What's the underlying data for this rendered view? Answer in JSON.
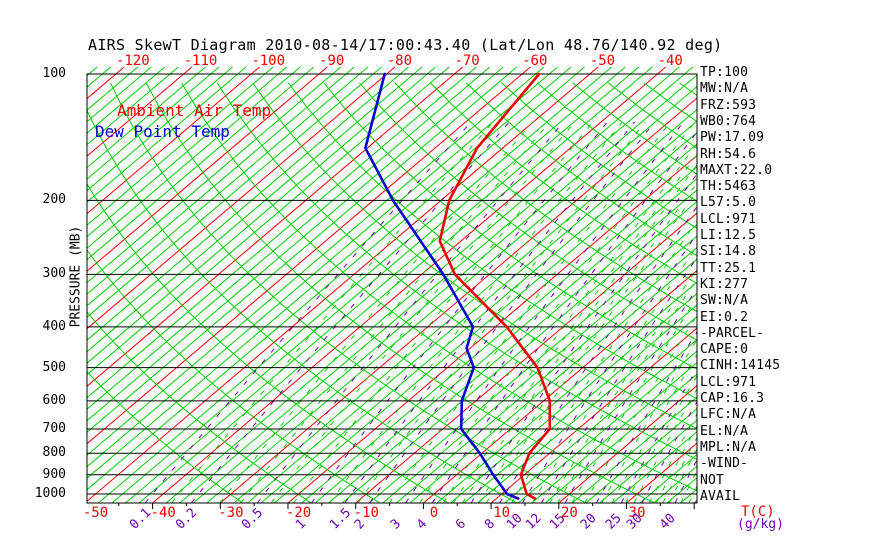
{
  "title": "AIRS SkewT Diagram 2010-08-14/17:00:43.40 (Lat/Lon 48.76/140.92 deg)",
  "legend": {
    "temp": "Ambient Air Temp",
    "dew": "Dew Point Temp"
  },
  "colors": {
    "temp_curve": "#ee0000",
    "dew_curve": "#0000cc",
    "isotherm_minor": "#00cc00",
    "isotherm_major": "#ee0000",
    "dry_adiabat": "#00cc00",
    "mixing_minor": "#00cc00",
    "mixing_major": "#7000b0",
    "isobar": "#000000",
    "title_text": "#000000"
  },
  "axes": {
    "pressure_label": "PRESSURE (MB)",
    "pressure_ticks": [
      100,
      200,
      300,
      400,
      500,
      600,
      700,
      800,
      900,
      1000
    ],
    "temp_unit_label": "T(C)",
    "mixing_unit_label": "(g/kg)",
    "top_isotherm_labels": [
      -120,
      -110,
      -100,
      -90,
      -80,
      -70,
      -60,
      -50,
      -40
    ],
    "bottom_isotherm_labels": [
      -50,
      -40,
      -30,
      -20,
      -10,
      0,
      10,
      20,
      30
    ],
    "mixing_ratio_labels": [
      0.1,
      0.2,
      0.5,
      1,
      1.5,
      2,
      3,
      4,
      6,
      8,
      10,
      12,
      15,
      20,
      25,
      30,
      40
    ]
  },
  "right_panel": {
    "items": [
      "TP:100",
      "MW:N/A",
      "FRZ:593",
      "WB0:764",
      "PW:17.09",
      "RH:54.6",
      "MAXT:22.0",
      "TH:5463",
      "L57:5.0",
      "LCL:971",
      "LI:12.5",
      "SI:14.8",
      "TT:25.1",
      "KI:277",
      "SW:N/A",
      "EI:0.2",
      "-PARCEL-",
      "CAPE:0",
      "CINH:14145",
      "LCL:971",
      "CAP:16.3",
      "LFC:N/A",
      "EL:N/A",
      "MPL:N/A",
      "-WIND-",
      "NOT",
      "AVAIL"
    ]
  },
  "chart_data": {
    "type": "line",
    "subtype": "skewt-log-p",
    "title": "AIRS SkewT Diagram 2010-08-14/17:00:43.40 (Lat/Lon 48.76/140.92 deg)",
    "x_axis": {
      "label": "T(C)",
      "ticks": [
        -50,
        -40,
        -30,
        -20,
        -10,
        0,
        10,
        20,
        30
      ],
      "skew_deg": 45
    },
    "y_axis": {
      "label": "PRESSURE (MB)",
      "scale": "log",
      "range": [
        1050,
        100
      ],
      "ticks": [
        100,
        200,
        300,
        400,
        500,
        600,
        700,
        800,
        900,
        1000
      ]
    },
    "grid": {
      "isotherms_c": {
        "min": -134,
        "max": 42,
        "minor_step": 2,
        "major_step": 10
      },
      "dry_adiabats_theta_k": {
        "min": 243,
        "max": 453,
        "step": 10
      },
      "mixing_ratio_major_g_kg": [
        0.1,
        0.2,
        0.5,
        1,
        1.5,
        2,
        3,
        4,
        6,
        8,
        10,
        12,
        15,
        20,
        25,
        30,
        40
      ],
      "mixing_ratio_minor_g_kg": [
        0.15,
        0.3,
        0.4,
        0.6,
        0.8,
        1.25,
        1.75,
        2.5,
        3.5,
        4.5,
        5,
        5.5,
        6.5,
        7,
        9,
        11,
        13,
        14,
        16,
        18,
        21,
        23,
        26,
        28,
        32,
        34,
        36,
        38,
        42,
        45,
        48
      ]
    },
    "series": [
      {
        "name": "Ambient Air Temp",
        "color": "#ee0000",
        "points_p_mb_t_c": [
          [
            100,
            -57.5
          ],
          [
            150,
            -53.8
          ],
          [
            200,
            -48.8
          ],
          [
            250,
            -43.1
          ],
          [
            300,
            -35.1
          ],
          [
            400,
            -18.3
          ],
          [
            450,
            -12.2
          ],
          [
            500,
            -6.7
          ],
          [
            600,
            0.9
          ],
          [
            700,
            5.8
          ],
          [
            800,
            7.0
          ],
          [
            900,
            9.5
          ],
          [
            1000,
            13.7
          ],
          [
            1025,
            15.7
          ]
        ]
      },
      {
        "name": "Dew Point Temp",
        "color": "#0000cc",
        "points_p_mb_t_c": [
          [
            100,
            -80.3
          ],
          [
            150,
            -70.3
          ],
          [
            200,
            -57.1
          ],
          [
            300,
            -36.8
          ],
          [
            400,
            -23.3
          ],
          [
            450,
            -20.5
          ],
          [
            500,
            -16.1
          ],
          [
            600,
            -12.1
          ],
          [
            700,
            -7.3
          ],
          [
            800,
            -0.3
          ],
          [
            900,
            5.4
          ],
          [
            1000,
            10.8
          ],
          [
            1025,
            13.2
          ]
        ]
      }
    ],
    "wind": "NOT AVAIL"
  }
}
